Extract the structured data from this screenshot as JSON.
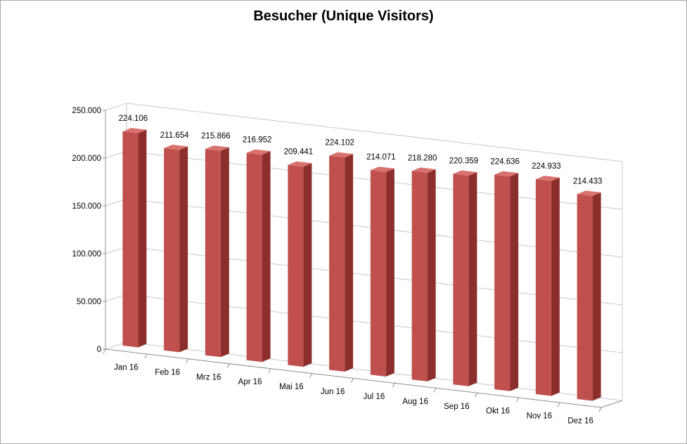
{
  "chart_data": {
    "type": "bar",
    "title": "Besucher (Unique Visitors)",
    "categories": [
      "Jan 16",
      "Feb 16",
      "Mrz 16",
      "Apr 16",
      "Mai 16",
      "Jun 16",
      "Jul 16",
      "Aug 16",
      "Sep 16",
      "Okt 16",
      "Nov 16",
      "Dez 16"
    ],
    "values": [
      224106,
      211654,
      215866,
      216952,
      209441,
      224102,
      214071,
      218280,
      220359,
      224636,
      224933,
      214433
    ],
    "value_labels": [
      "224.106",
      "211.654",
      "215.866",
      "216.952",
      "209.441",
      "224.102",
      "214.071",
      "218.280",
      "220.359",
      "224.636",
      "224.933",
      "214.433"
    ],
    "yticks": [
      0,
      50000,
      100000,
      150000,
      200000,
      250000
    ],
    "ytick_labels": [
      "0",
      "50.000",
      "100.000",
      "150.000",
      "200.000",
      "250.000"
    ],
    "ylim": [
      0,
      250000
    ],
    "xlabel": "",
    "ylabel": "",
    "grid": true,
    "legend": "none",
    "style": "3d-column",
    "colors": {
      "bar_front": "#c0504d",
      "bar_side": "#8c2f2c",
      "bar_top": "#d9716d",
      "grid": "#c8c8c8",
      "axis": "#8c8c8c"
    }
  }
}
